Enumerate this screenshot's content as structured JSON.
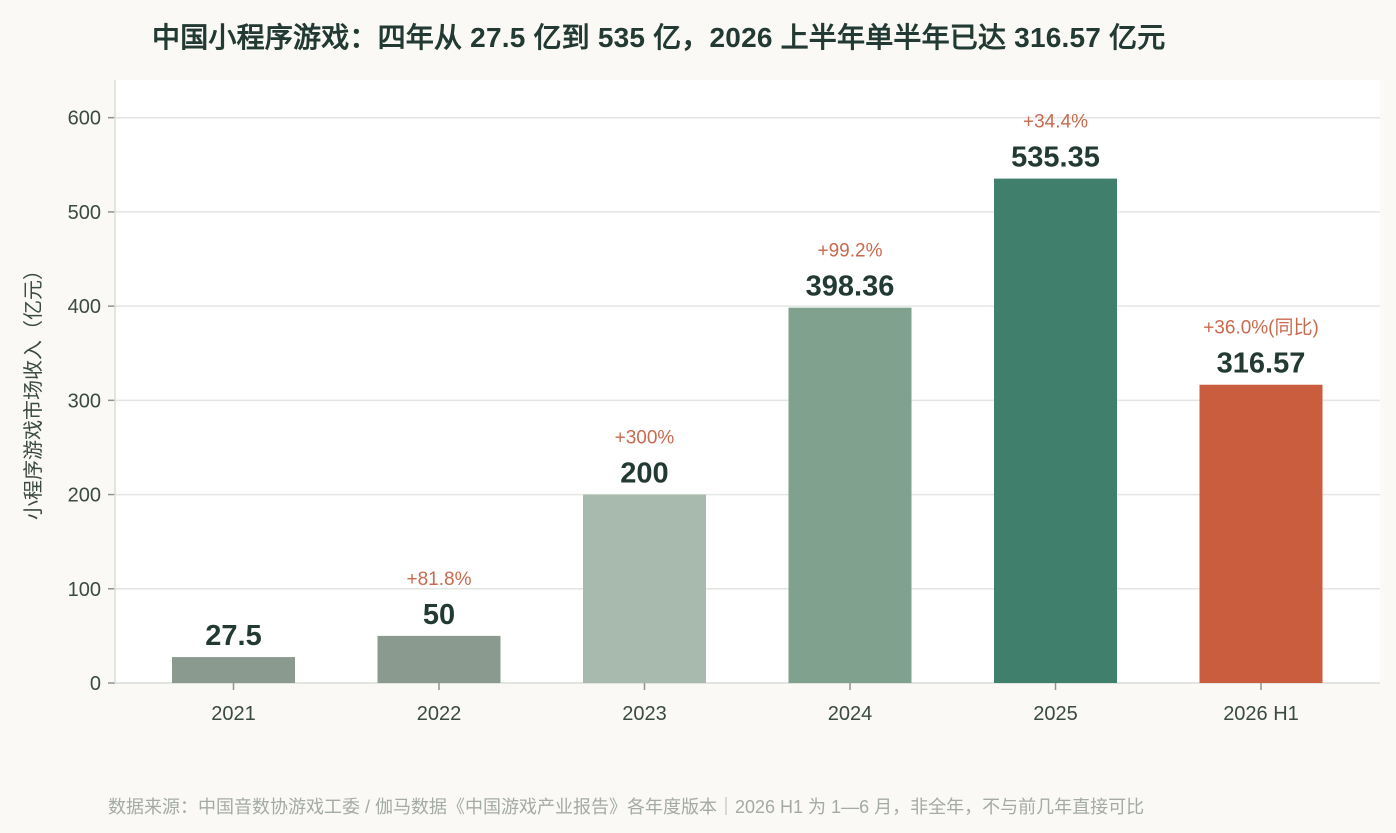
{
  "chart_data": {
    "type": "bar",
    "title": "中国小程序游戏：四年从 27.5 亿到 535 亿，2026 上半年单半年已达 316.57 亿元",
    "ylabel": "小程序游戏市场收入（亿元）",
    "xlabel": "",
    "ylim": [
      0,
      640
    ],
    "yticks": [
      0,
      100,
      200,
      300,
      400,
      500,
      600
    ],
    "grid": true,
    "categories": [
      "2021",
      "2022",
      "2023",
      "2024",
      "2025",
      "2026 H1"
    ],
    "values": [
      27.5,
      50,
      200,
      398.36,
      535.35,
      316.57
    ],
    "value_labels": [
      "27.5",
      "50",
      "200",
      "398.36",
      "535.35",
      "316.57"
    ],
    "growth_labels": [
      "",
      "+81.8%",
      "+300%",
      "+99.2%",
      "+34.4%",
      "+36.0%(同比)"
    ],
    "colors": [
      "#8a9a8e",
      "#8a9a8e",
      "#a8b9ad",
      "#7fa18e",
      "#3f7f6c",
      "#c95d3e"
    ]
  },
  "source_note": "数据来源：中国音数协游戏工委 / 伽马数据《中国游戏产业报告》各年度版本｜2026 H1 为 1—6 月，非全年，不与前几年直接可比"
}
